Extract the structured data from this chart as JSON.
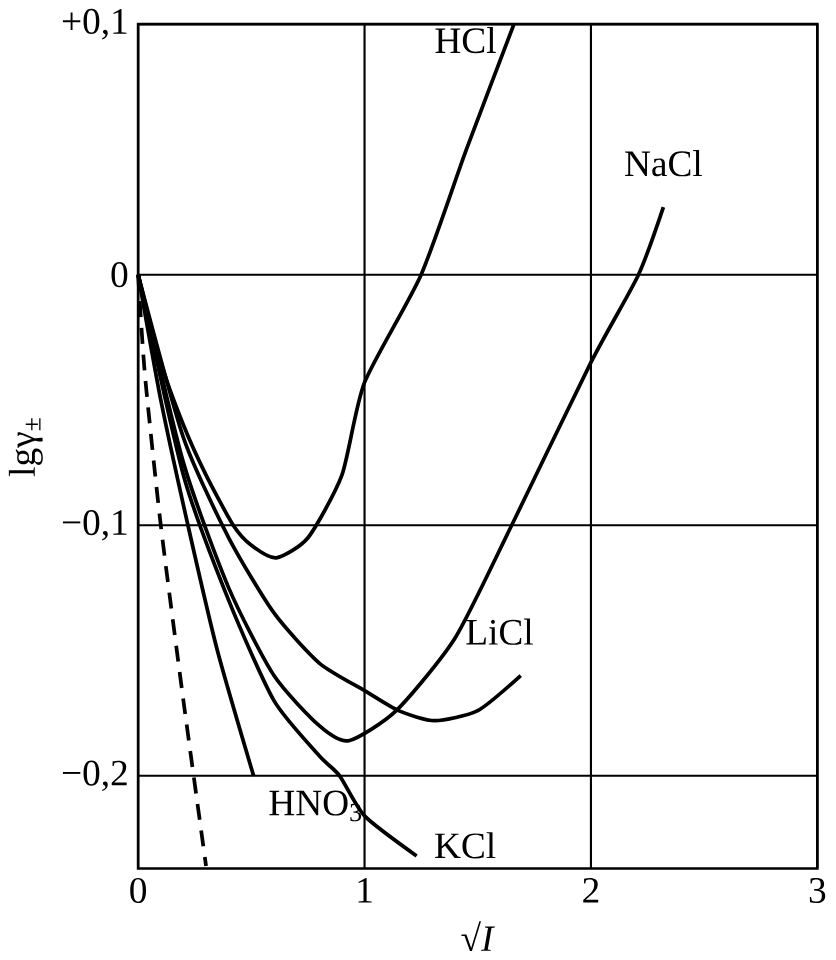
{
  "chart_data": {
    "type": "line",
    "xlabel": "√*I*",
    "ylabel": "lgγ$_{±}$",
    "xlim": [
      0,
      3
    ],
    "ylim": [
      -0.237,
      0.1
    ],
    "xticks": [
      0,
      1,
      2,
      3
    ],
    "yticks": [
      {
        "value": 0.1,
        "label": "+0,1"
      },
      {
        "value": 0,
        "label": "0"
      },
      {
        "value": -0.1,
        "label": "−0,1"
      },
      {
        "value": -0.2,
        "label": "−0,2"
      }
    ],
    "grid": true,
    "marker": "none",
    "series": [
      {
        "name": "HCl",
        "color": "#000000",
        "x": [
          0,
          0.1,
          0.2,
          0.3,
          0.42,
          0.5,
          0.61,
          0.75,
          0.9,
          1.0,
          1.25,
          1.45,
          1.66
        ],
        "values": [
          0,
          -0.035,
          -0.06,
          -0.08,
          -0.1,
          -0.108,
          -0.113,
          -0.105,
          -0.08,
          -0.043,
          0,
          0.05,
          0.1
        ]
      },
      {
        "name": "NaCl",
        "color": "#000000",
        "x": [
          0,
          0.2,
          0.4,
          0.6,
          0.8,
          0.93,
          1.14,
          1.4,
          1.65,
          2.0,
          2.21,
          2.32
        ],
        "values": [
          0,
          -0.075,
          -0.125,
          -0.16,
          -0.18,
          -0.186,
          -0.174,
          -0.145,
          -0.1,
          -0.035,
          0,
          0.027
        ]
      },
      {
        "name": "LiCl",
        "color": "#000000",
        "x": [
          0,
          0.2,
          0.4,
          0.6,
          0.8,
          1.0,
          1.15,
          1.31,
          1.5,
          1.69
        ],
        "values": [
          0,
          -0.065,
          -0.105,
          -0.135,
          -0.155,
          -0.166,
          -0.174,
          -0.178,
          -0.174,
          -0.16
        ]
      },
      {
        "name": "KCl",
        "color": "#000000",
        "x": [
          0,
          0.2,
          0.4,
          0.6,
          0.8,
          0.89,
          1.0,
          1.23
        ],
        "values": [
          0,
          -0.08,
          -0.13,
          -0.17,
          -0.192,
          -0.2,
          -0.216,
          -0.232
        ]
      },
      {
        "name": "HNO$_{3}$",
        "color": "#000000",
        "x": [
          0,
          0.1,
          0.22,
          0.35,
          0.51
        ],
        "values": [
          0,
          -0.05,
          -0.1,
          -0.15,
          -0.2
        ]
      },
      {
        "color": "#000000",
        "line_style": "dashed",
        "x": [
          0,
          0.03,
          0.1,
          0.2,
          0.3
        ],
        "values": [
          0,
          -0.04,
          -0.1,
          -0.17,
          -0.236
        ]
      }
    ]
  }
}
